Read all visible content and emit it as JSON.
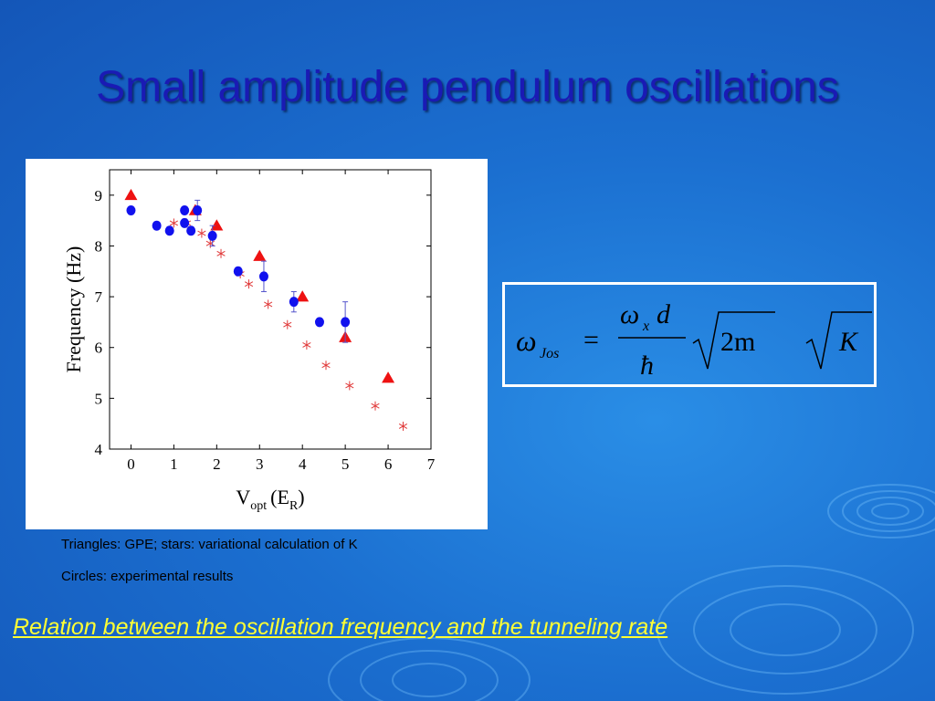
{
  "slide": {
    "title": "Small amplitude pendulum oscillations",
    "caption_line1": "Triangles: GPE; stars: variational calculation of K",
    "caption_line2": "Circles: experimental results",
    "relation_text": "Relation between the oscillation frequency and the tunneling rate"
  },
  "formula": {
    "omega": "ω",
    "sub_jos": "Jos",
    "equals": "=",
    "num_omega": "ω",
    "num_sub_x": "x",
    "num_d": "d",
    "denominator": "ħ",
    "radicand1": "2m",
    "radicand2": "K"
  },
  "colors": {
    "background": "#1b6fd0",
    "title": "#1a1ab4",
    "relation": "#ffff33",
    "triangles": "#ee1111",
    "circles": "#1111ee",
    "stars": "#e03a3a"
  },
  "chart_data": {
    "type": "scatter",
    "xlabel_main": "V",
    "xlabel_sub": "opt",
    "xlabel_open": "(E",
    "xlabel_sub2": "R",
    "xlabel_close": ")",
    "ylabel": "Frequency (Hz)",
    "xlim": [
      -0.5,
      7
    ],
    "ylim": [
      4,
      9.5
    ],
    "xticks": [
      0,
      1,
      2,
      3,
      4,
      5,
      6,
      7
    ],
    "yticks": [
      4,
      5,
      6,
      7,
      8,
      9
    ],
    "grid": false,
    "series": [
      {
        "marker": "triangle",
        "color": "#ee1111",
        "points": [
          [
            0,
            9.0
          ],
          [
            1.5,
            8.7
          ],
          [
            2.0,
            8.4
          ],
          [
            3.0,
            7.8
          ],
          [
            4.0,
            7.0
          ],
          [
            5.0,
            6.2
          ],
          [
            6.0,
            5.4
          ]
        ]
      },
      {
        "marker": "star",
        "color": "#e03a3a",
        "points": [
          [
            1.0,
            8.45
          ],
          [
            1.3,
            8.45
          ],
          [
            1.65,
            8.25
          ],
          [
            1.85,
            8.05
          ],
          [
            2.1,
            7.85
          ],
          [
            2.55,
            7.45
          ],
          [
            2.75,
            7.25
          ],
          [
            3.2,
            6.85
          ],
          [
            3.65,
            6.45
          ],
          [
            4.1,
            6.05
          ],
          [
            4.55,
            5.65
          ],
          [
            5.1,
            5.25
          ],
          [
            5.7,
            4.85
          ],
          [
            6.35,
            4.45
          ]
        ]
      },
      {
        "marker": "circle",
        "color": "#1111ee",
        "points": [
          [
            0,
            8.7,
            0
          ],
          [
            0.6,
            8.4,
            0
          ],
          [
            0.9,
            8.3,
            0
          ],
          [
            1.25,
            8.7,
            0
          ],
          [
            1.25,
            8.45,
            0
          ],
          [
            1.4,
            8.3,
            0
          ],
          [
            1.55,
            8.7,
            0.2
          ],
          [
            1.9,
            8.2,
            0.2
          ],
          [
            2.5,
            7.5,
            0
          ],
          [
            3.1,
            7.4,
            0.3
          ],
          [
            3.8,
            6.9,
            0.2
          ],
          [
            4.4,
            6.5,
            0
          ],
          [
            5.0,
            6.5,
            0.4
          ]
        ]
      }
    ]
  }
}
